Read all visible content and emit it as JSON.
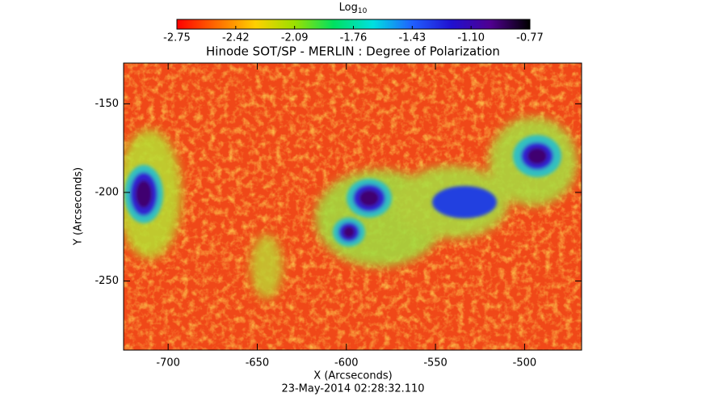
{
  "chart_data": {
    "type": "heatmap",
    "title": "Hinode SOT/SP - MERLIN : Degree of Polarization",
    "xlabel": "X (Arcseconds)",
    "ylabel": "Y (Arcseconds)",
    "annotation": "23-May-2014 02:28:32.110",
    "xlim": [
      -725,
      -468
    ],
    "xticks": [
      -700,
      -650,
      -600,
      -550,
      -500
    ],
    "ylim": [
      -289,
      -127
    ],
    "yticks": [
      -250,
      -200,
      -150
    ],
    "colorbar": {
      "label": "Log",
      "label_subscript": "10",
      "lim": [
        -2.75,
        -0.77
      ],
      "ticks": [
        -2.75,
        -2.42,
        -2.09,
        -1.76,
        -1.43,
        {
          "value": -1.1,
          "label": "-1.10"
        },
        -0.77
      ],
      "colors": [
        "#ff0000",
        "#ff6a00",
        "#ffd000",
        "#9be000",
        "#00e060",
        "#00e0e0",
        "#2060ff",
        "#2010d0",
        "#500090",
        "#000000"
      ]
    }
  }
}
